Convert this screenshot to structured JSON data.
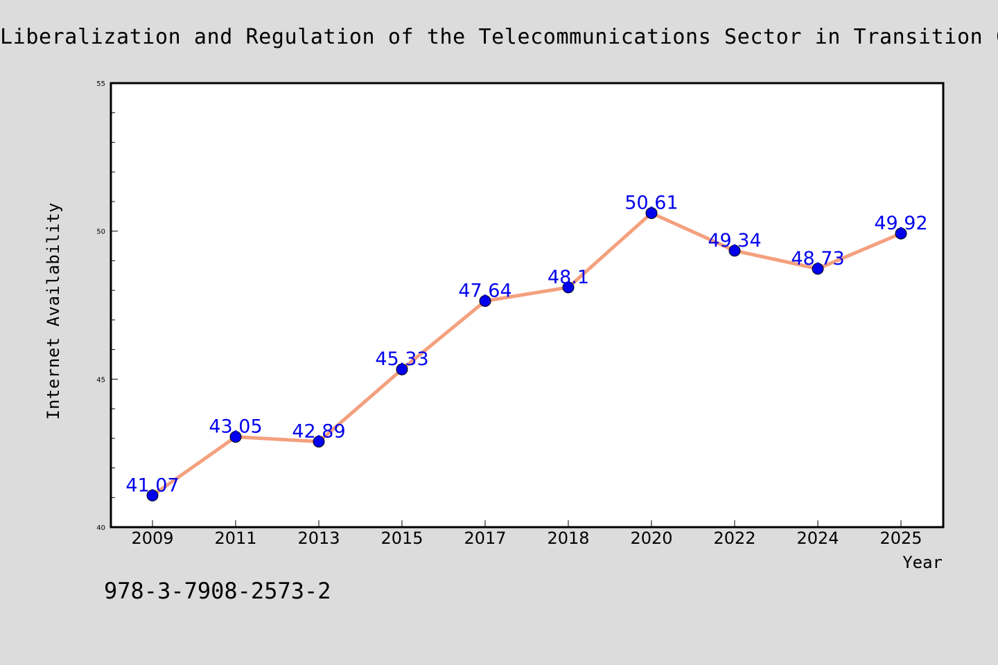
{
  "chart_data": {
    "type": "line",
    "title": "Liberalization and Regulation of the Telecommunications Sector in Transition Countries",
    "xlabel": "Year",
    "ylabel": "Internet Availability",
    "categories": [
      "2009",
      "2011",
      "2013",
      "2015",
      "2017",
      "2018",
      "2020",
      "2022",
      "2024",
      "2025"
    ],
    "series": [
      {
        "values": [
          41.07,
          43.05,
          42.89,
          45.33,
          47.64,
          48.1,
          50.61,
          49.34,
          48.73,
          49.92
        ],
        "data_labels": [
          "41.07",
          "43.05",
          "42.89",
          "45.33",
          "47.64",
          "48.1",
          "50.61",
          "49.34",
          "48.73",
          "49.92"
        ]
      }
    ],
    "ylim": [
      40,
      55
    ],
    "y_ticks": [
      "40",
      "45",
      "50",
      "55"
    ],
    "grid": false,
    "legend": false
  },
  "annotation": "978-3-7908-2573-2",
  "colors": {
    "background": "#dcdcdc",
    "plot_background": "#ffffff",
    "line": "#f4a07e",
    "marker": "#0000ee",
    "data_label": "#0000ee",
    "text": "#000000"
  }
}
